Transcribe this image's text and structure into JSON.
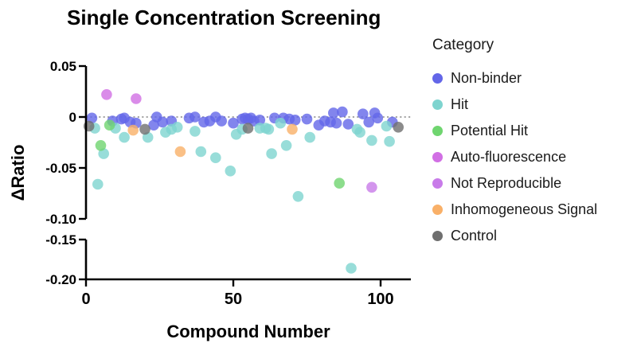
{
  "title": "Single Concentration Screening",
  "legend": {
    "title": "Category",
    "items": [
      {
        "label": "Non-binder",
        "color": "#6366e8"
      },
      {
        "label": "Hit",
        "color": "#7ed4cf"
      },
      {
        "label": "Potential Hit",
        "color": "#6fd56f"
      },
      {
        "label": "Auto-fluorescence",
        "color": "#d16fe4"
      },
      {
        "label": "Not Reproducible",
        "color": "#c87be9"
      },
      {
        "label": "Inhomogeneous Signal",
        "color": "#f9b068"
      },
      {
        "label": "Control",
        "color": "#6f6f6f"
      }
    ]
  },
  "chart_data": {
    "type": "scatter",
    "title": "Single Concentration Screening",
    "xlabel": "Compound Number",
    "ylabel": "ΔRatio",
    "xlim": [
      0,
      110
    ],
    "xticks": [
      0,
      50,
      100
    ],
    "xtick_labels": [
      "0",
      "50",
      "100"
    ],
    "ytick_values": [
      0.05,
      0,
      -0.05,
      -0.1,
      -0.15,
      -0.2
    ],
    "ytick_labels": [
      "0.05",
      "0",
      "-0.05",
      "-0.10",
      "-0.15",
      "-0.20"
    ],
    "axis_break": {
      "between": [
        -0.1,
        -0.15
      ]
    },
    "zero_line": {
      "y": 0,
      "style": "dotted",
      "color": "#8a8a8a"
    },
    "grid": false,
    "legend_position": "right",
    "marker_opacity": 0.8,
    "series": [
      {
        "name": "Non-binder",
        "color": "#6366e8",
        "points": [
          [
            2,
            -0.001
          ],
          [
            9,
            -0.004
          ],
          [
            12,
            -0.002
          ],
          [
            13,
            -0.001
          ],
          [
            15,
            -0.005
          ],
          [
            17,
            -0.006
          ],
          [
            23,
            -0.008
          ],
          [
            24,
            0
          ],
          [
            26,
            -0.005
          ],
          [
            29,
            -0.004
          ],
          [
            35,
            -0.001
          ],
          [
            37,
            0
          ],
          [
            40,
            -0.005
          ],
          [
            42,
            -0.004
          ],
          [
            44,
            0
          ],
          [
            46,
            -0.004
          ],
          [
            50,
            -0.006
          ],
          [
            53,
            -0.002
          ],
          [
            54,
            -0.001
          ],
          [
            55,
            -0.002
          ],
          [
            56,
            -0.001
          ],
          [
            57,
            -0.004
          ],
          [
            59,
            -0.003
          ],
          [
            64,
            -0.001
          ],
          [
            67,
            -0.001
          ],
          [
            69,
            -0.002
          ],
          [
            71,
            -0.003
          ],
          [
            75,
            -0.002
          ],
          [
            79,
            -0.008
          ],
          [
            81,
            -0.004
          ],
          [
            83,
            -0.005
          ],
          [
            84,
            0.004
          ],
          [
            85,
            -0.006
          ],
          [
            87,
            0.005
          ],
          [
            89,
            -0.007
          ],
          [
            94,
            0.003
          ],
          [
            96,
            -0.005
          ],
          [
            98,
            0.004
          ],
          [
            99,
            -0.001
          ],
          [
            104,
            -0.005
          ]
        ]
      },
      {
        "name": "Hit",
        "color": "#7ed4cf",
        "points": [
          [
            3,
            -0.011
          ],
          [
            4,
            -0.066
          ],
          [
            6,
            -0.036
          ],
          [
            10,
            -0.011
          ],
          [
            13,
            -0.02
          ],
          [
            21,
            -0.02
          ],
          [
            27,
            -0.015
          ],
          [
            29,
            -0.012
          ],
          [
            31,
            -0.01
          ],
          [
            37,
            -0.014
          ],
          [
            39,
            -0.034
          ],
          [
            44,
            -0.04
          ],
          [
            49,
            -0.053
          ],
          [
            51,
            -0.017
          ],
          [
            53,
            -0.012
          ],
          [
            59,
            -0.011
          ],
          [
            61,
            -0.011
          ],
          [
            62,
            -0.012
          ],
          [
            63,
            -0.036
          ],
          [
            66,
            -0.006
          ],
          [
            68,
            -0.028
          ],
          [
            72,
            -0.078
          ],
          [
            76,
            -0.02
          ],
          [
            90,
            -0.186
          ],
          [
            92,
            -0.012
          ],
          [
            93,
            -0.015
          ],
          [
            97,
            -0.023
          ],
          [
            102,
            -0.009
          ],
          [
            103,
            -0.024
          ]
        ]
      },
      {
        "name": "Potential Hit",
        "color": "#6fd56f",
        "points": [
          [
            5,
            -0.028
          ],
          [
            8,
            -0.008
          ],
          [
            86,
            -0.065
          ]
        ]
      },
      {
        "name": "Auto-fluorescence",
        "color": "#d16fe4",
        "points": [
          [
            7,
            0.022
          ],
          [
            17,
            0.018
          ]
        ]
      },
      {
        "name": "Not Reproducible",
        "color": "#c87be9",
        "points": [
          [
            97,
            -0.069
          ]
        ]
      },
      {
        "name": "Inhomogeneous Signal",
        "color": "#f9b068",
        "points": [
          [
            16,
            -0.013
          ],
          [
            32,
            -0.034
          ],
          [
            70,
            -0.012
          ]
        ]
      },
      {
        "name": "Control",
        "color": "#6f6f6f",
        "points": [
          [
            1,
            -0.009
          ],
          [
            20,
            -0.012
          ],
          [
            55,
            -0.011
          ],
          [
            106,
            -0.01
          ]
        ]
      }
    ]
  }
}
